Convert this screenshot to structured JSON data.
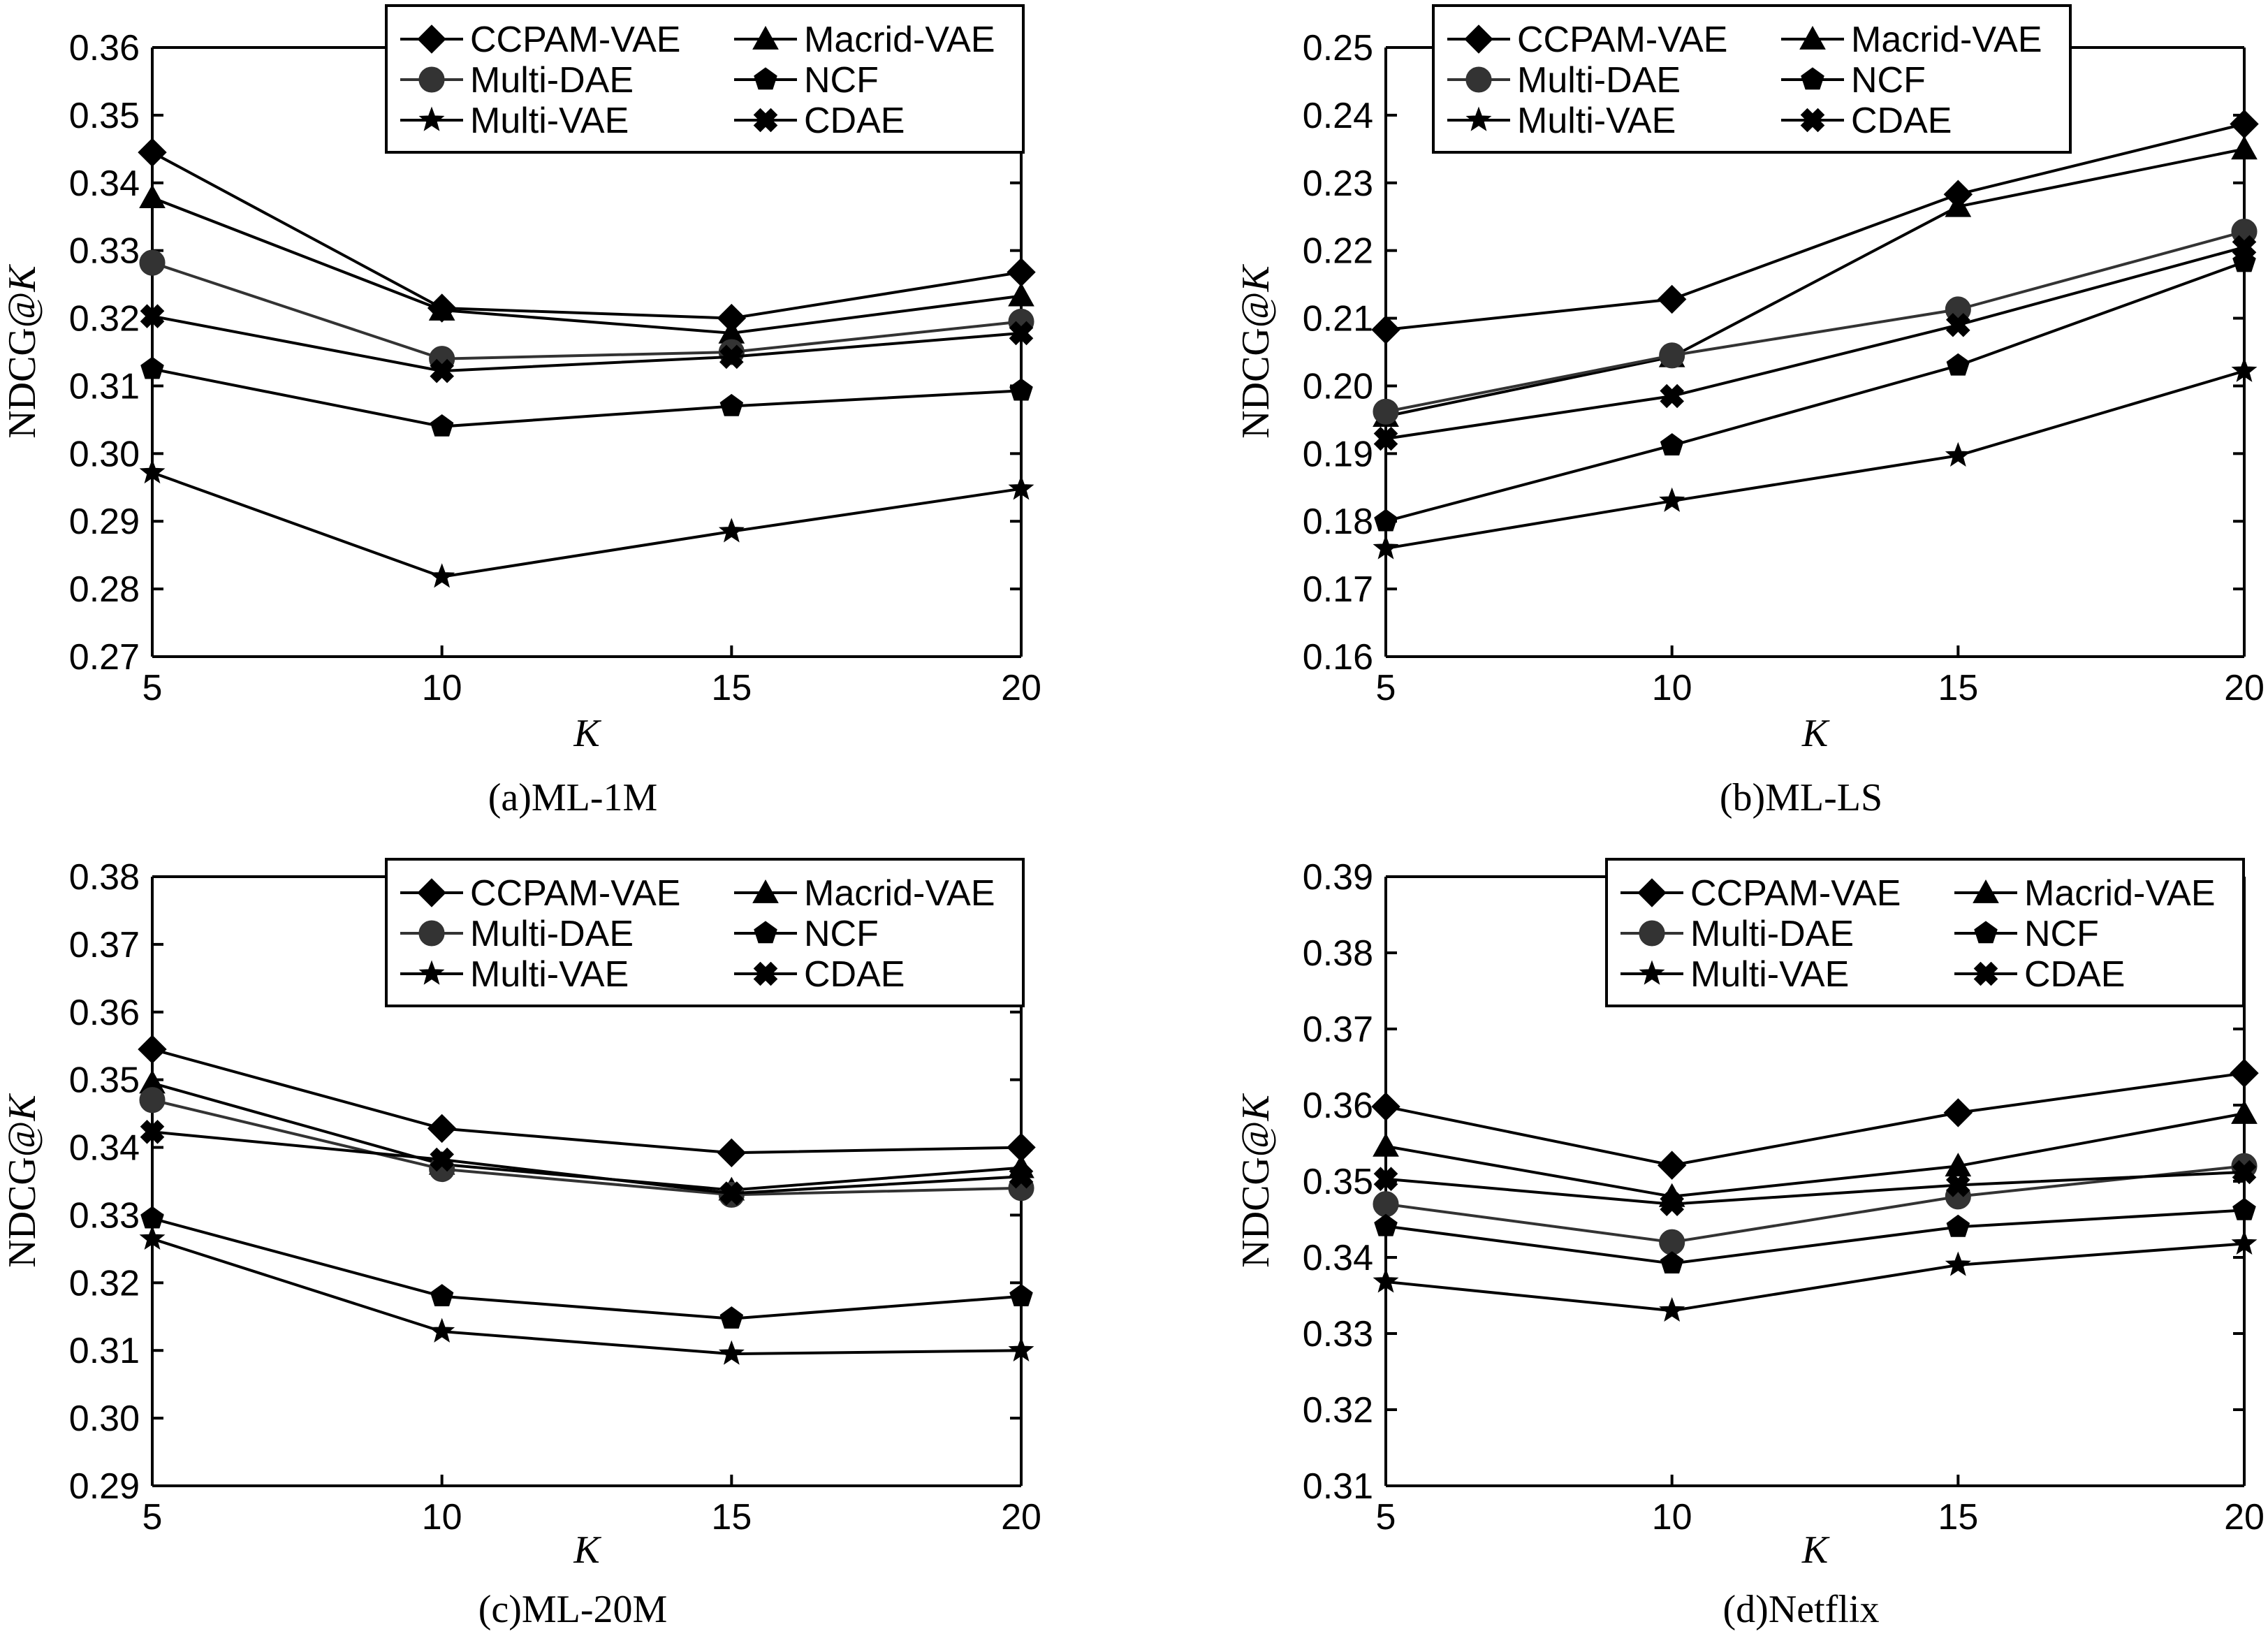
{
  "series_styles": {
    "CCPAM-VAE": {
      "color": "#000000",
      "marker": "diamond"
    },
    "Macrid-VAE": {
      "color": "#000000",
      "marker": "triangle"
    },
    "Multi-DAE": {
      "color": "#333333",
      "marker": "circle"
    },
    "NCF": {
      "color": "#000000",
      "marker": "pentagon"
    },
    "Multi-VAE": {
      "color": "#000000",
      "marker": "star"
    },
    "CDAE": {
      "color": "#000000",
      "marker": "cross"
    }
  },
  "legend_order": [
    "CCPAM-VAE",
    "Macrid-VAE",
    "Multi-DAE",
    "NCF",
    "Multi-VAE",
    "CDAE"
  ],
  "chart_data": [
    {
      "type": "line",
      "caption": "(a)ML-1M",
      "xlabel": "K",
      "ylabel_prefix": "NDCG@",
      "ylabel_italic": "K",
      "x": [
        5,
        10,
        15,
        20
      ],
      "x_ticks": [
        "5",
        "10",
        "15",
        "20"
      ],
      "xlim": [
        5,
        20
      ],
      "ylim": [
        0.27,
        0.36
      ],
      "y_ticks": [
        "0.27",
        "0.28",
        "0.29",
        "0.30",
        "0.31",
        "0.32",
        "0.33",
        "0.34",
        "0.35",
        "0.36"
      ],
      "legend_position": "top-right",
      "series": [
        {
          "name": "CCPAM-VAE",
          "values": [
            0.3445,
            0.3215,
            0.32,
            0.3268
          ]
        },
        {
          "name": "Macrid-VAE",
          "values": [
            0.3378,
            0.3212,
            0.3178,
            0.3233
          ]
        },
        {
          "name": "Multi-DAE",
          "values": [
            0.3282,
            0.314,
            0.315,
            0.3195
          ]
        },
        {
          "name": "NCF",
          "values": [
            0.3125,
            0.304,
            0.307,
            0.3093
          ]
        },
        {
          "name": "Multi-VAE",
          "values": [
            0.2972,
            0.2818,
            0.2885,
            0.2948
          ]
        },
        {
          "name": "CDAE",
          "values": [
            0.3203,
            0.3122,
            0.3143,
            0.3178
          ]
        }
      ]
    },
    {
      "type": "line",
      "caption": "(b)ML-LS",
      "xlabel": "K",
      "ylabel_prefix": "NDCG@",
      "ylabel_italic": "K",
      "x": [
        5,
        10,
        15,
        20
      ],
      "x_ticks": [
        "5",
        "10",
        "15",
        "20"
      ],
      "xlim": [
        5,
        20
      ],
      "ylim": [
        0.16,
        0.25
      ],
      "y_ticks": [
        "0.16",
        "0.17",
        "0.18",
        "0.19",
        "0.20",
        "0.21",
        "0.22",
        "0.23",
        "0.24",
        "0.25"
      ],
      "legend_position": "top",
      "series": [
        {
          "name": "CCPAM-VAE",
          "values": [
            0.2083,
            0.2128,
            0.2283,
            0.2387
          ]
        },
        {
          "name": "Macrid-VAE",
          "values": [
            0.1955,
            0.2043,
            0.2265,
            0.235
          ]
        },
        {
          "name": "Multi-DAE",
          "values": [
            0.1962,
            0.2045,
            0.2113,
            0.2228
          ]
        },
        {
          "name": "NCF",
          "values": [
            0.18,
            0.1912,
            0.203,
            0.2183
          ]
        },
        {
          "name": "Multi-VAE",
          "values": [
            0.176,
            0.183,
            0.1897,
            0.2022
          ]
        },
        {
          "name": "CDAE",
          "values": [
            0.1922,
            0.1985,
            0.209,
            0.2205
          ]
        }
      ]
    },
    {
      "type": "line",
      "caption": "(c)ML-20M",
      "xlabel": "K",
      "ylabel_prefix": "NDCG@",
      "ylabel_italic": "K",
      "x": [
        5,
        10,
        15,
        20
      ],
      "x_ticks": [
        "5",
        "10",
        "15",
        "20"
      ],
      "xlim": [
        5,
        20
      ],
      "ylim": [
        0.29,
        0.38
      ],
      "y_ticks": [
        "0.29",
        "0.30",
        "0.31",
        "0.32",
        "0.33",
        "0.34",
        "0.35",
        "0.36",
        "0.37",
        "0.38"
      ],
      "legend_position": "top-right",
      "series": [
        {
          "name": "CCPAM-VAE",
          "values": [
            0.3545,
            0.3428,
            0.3392,
            0.34
          ]
        },
        {
          "name": "Macrid-VAE",
          "values": [
            0.3495,
            0.3375,
            0.3337,
            0.337
          ]
        },
        {
          "name": "Multi-DAE",
          "values": [
            0.347,
            0.3368,
            0.333,
            0.334
          ]
        },
        {
          "name": "NCF",
          "values": [
            0.3295,
            0.318,
            0.3147,
            0.318
          ]
        },
        {
          "name": "Multi-VAE",
          "values": [
            0.3265,
            0.3128,
            0.3095,
            0.31
          ]
        },
        {
          "name": "CDAE",
          "values": [
            0.3423,
            0.3382,
            0.3332,
            0.3357
          ]
        }
      ]
    },
    {
      "type": "line",
      "caption": "(d)Netflix",
      "xlabel": "K",
      "ylabel_prefix": "NDCG@",
      "ylabel_italic": "K",
      "x": [
        5,
        10,
        15,
        20
      ],
      "x_ticks": [
        "5",
        "10",
        "15",
        "20"
      ],
      "xlim": [
        5,
        20
      ],
      "ylim": [
        0.31,
        0.39
      ],
      "y_ticks": [
        "0.31",
        "0.32",
        "0.33",
        "0.34",
        "0.35",
        "0.36",
        "0.37",
        "0.38",
        "0.39"
      ],
      "legend_position": "top-right",
      "series": [
        {
          "name": "CCPAM-VAE",
          "values": [
            0.3598,
            0.3521,
            0.359,
            0.3642
          ]
        },
        {
          "name": "Macrid-VAE",
          "values": [
            0.3546,
            0.348,
            0.352,
            0.3589
          ]
        },
        {
          "name": "Multi-DAE",
          "values": [
            0.347,
            0.342,
            0.348,
            0.352
          ]
        },
        {
          "name": "NCF",
          "values": [
            0.3441,
            0.3392,
            0.344,
            0.3462
          ]
        },
        {
          "name": "Multi-VAE",
          "values": [
            0.3368,
            0.333,
            0.339,
            0.3418
          ]
        },
        {
          "name": "CDAE",
          "values": [
            0.3503,
            0.347,
            0.3495,
            0.3512
          ]
        }
      ]
    }
  ]
}
